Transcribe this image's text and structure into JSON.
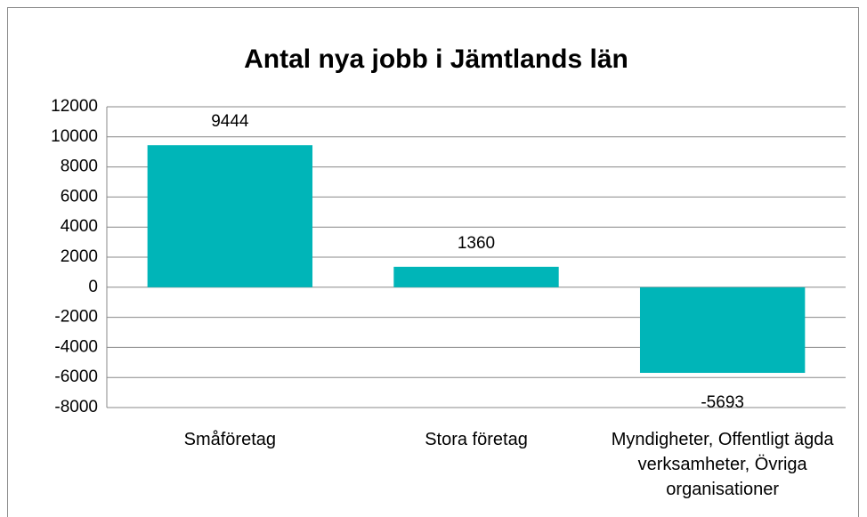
{
  "chart_data": {
    "type": "bar",
    "title": "Antal nya jobb i Jämtlands län",
    "categories": [
      "Småföretag",
      "Stora företag",
      "Myndigheter, Offentligt ägda verksamheter, Övriga organisationer"
    ],
    "values": [
      9444,
      1360,
      -5693
    ],
    "color": "#00b5b8",
    "ylim": [
      -8000,
      12000
    ],
    "yticks": [
      -8000,
      -6000,
      -4000,
      -2000,
      0,
      2000,
      4000,
      6000,
      8000,
      10000,
      12000
    ],
    "grid": true
  }
}
